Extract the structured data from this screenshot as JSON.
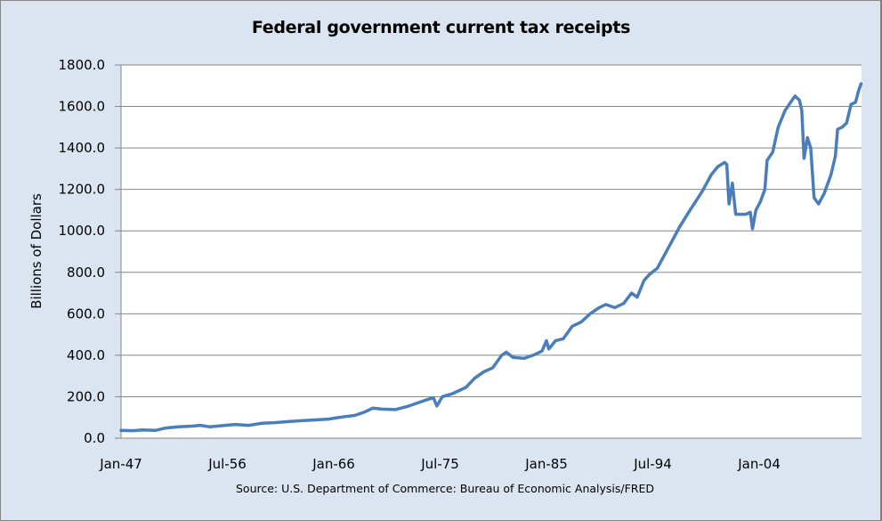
{
  "chart_data": {
    "type": "line",
    "title": "Federal government current tax receipts",
    "xlabel": "",
    "ylabel": "Billions of Dollars",
    "source": "Source: U.S. Department of Commerce: Bureau of Economic Analysis/FRED",
    "ylim": [
      0,
      1800
    ],
    "xlim": [
      1947.0,
      2013.1
    ],
    "grid": true,
    "legend": "none",
    "line_color": "#4a7ebb",
    "y_ticks": [
      "0.0",
      "200.0",
      "400.0",
      "600.0",
      "800.0",
      "1000.0",
      "1200.0",
      "1400.0",
      "1600.0",
      "1800.0"
    ],
    "y_tick_values": [
      0,
      200,
      400,
      600,
      800,
      1000,
      1200,
      1400,
      1600,
      1800
    ],
    "x_ticks": [
      "Jan-47",
      "Jul-56",
      "Jan-66",
      "Jul-75",
      "Jan-85",
      "Jul-94",
      "Jan-04"
    ],
    "x_tick_values": [
      1947.0,
      1956.5,
      1966.0,
      1975.5,
      1985.0,
      1994.5,
      2004.0
    ],
    "series": [
      {
        "name": "Federal government current tax receipts",
        "x": [
          1947.0,
          1948.1,
          1948.9,
          1950.1,
          1950.9,
          1952.1,
          1953.3,
          1954.1,
          1954.9,
          1956.0,
          1957.2,
          1958.4,
          1959.6,
          1960.8,
          1961.9,
          1963.1,
          1964.3,
          1965.5,
          1966.7,
          1967.9,
          1968.7,
          1969.5,
          1970.3,
          1971.5,
          1972.7,
          1973.5,
          1974.3,
          1974.9,
          1975.2,
          1975.7,
          1976.6,
          1977.8,
          1978.6,
          1979.4,
          1980.2,
          1981.0,
          1981.4,
          1982.0,
          1983.0,
          1983.8,
          1984.6,
          1985.0,
          1985.2,
          1985.8,
          1986.5,
          1987.3,
          1988.1,
          1988.9,
          1989.7,
          1990.3,
          1991.1,
          1991.9,
          1992.6,
          1993.1,
          1993.7,
          1994.2,
          1994.9,
          1995.5,
          1996.1,
          1996.9,
          1997.7,
          1998.3,
          1998.9,
          1999.7,
          2000.3,
          2000.9,
          2001.1,
          2001.3,
          2001.6,
          2001.9,
          2002.8,
          2003.2,
          2003.4,
          2003.7,
          2004.1,
          2004.5,
          2004.7,
          2005.2,
          2005.7,
          2006.3,
          2006.8,
          2007.2,
          2007.6,
          2007.8,
          2008.0,
          2008.3,
          2008.6,
          2008.9,
          2009.3,
          2009.8,
          2010.4,
          2010.8,
          2011.0,
          2011.4,
          2011.8,
          2012.2,
          2012.6,
          2012.9,
          2013.1
        ],
        "values": [
          38,
          36,
          40,
          38,
          48,
          55,
          58,
          62,
          55,
          60,
          66,
          62,
          72,
          75,
          80,
          84,
          88,
          92,
          102,
          110,
          125,
          145,
          140,
          138,
          155,
          170,
          185,
          195,
          155,
          200,
          215,
          245,
          290,
          320,
          340,
          400,
          415,
          390,
          385,
          400,
          420,
          470,
          430,
          470,
          480,
          540,
          560,
          600,
          630,
          645,
          630,
          650,
          700,
          680,
          760,
          790,
          820,
          880,
          940,
          1020,
          1090,
          1140,
          1190,
          1270,
          1310,
          1330,
          1320,
          1130,
          1230,
          1080,
          1080,
          1090,
          1010,
          1100,
          1140,
          1200,
          1340,
          1380,
          1500,
          1580,
          1620,
          1650,
          1630,
          1580,
          1350,
          1450,
          1400,
          1160,
          1130,
          1180,
          1270,
          1360,
          1490,
          1500,
          1520,
          1610,
          1620,
          1680,
          1710
        ]
      }
    ]
  }
}
